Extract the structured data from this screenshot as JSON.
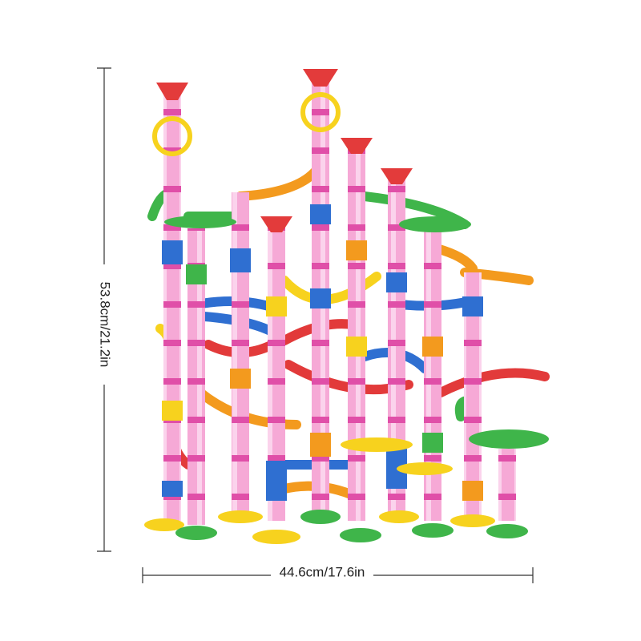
{
  "dimensions": {
    "height": "53.8cm/21.2in",
    "width": "44.6cm/17.6in"
  }
}
